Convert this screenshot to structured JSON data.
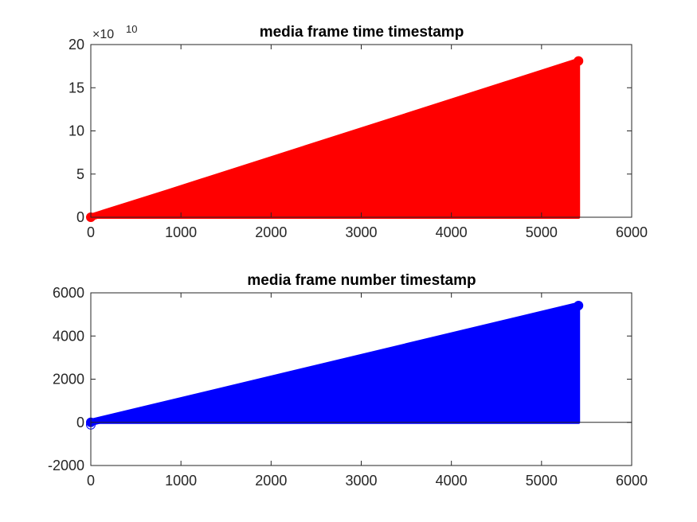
{
  "chart_data": [
    {
      "type": "scatter",
      "title": "media frame time timestamp",
      "xlabel": "",
      "ylabel": "",
      "xlim": [
        0,
        6000
      ],
      "ylim": [
        0,
        20
      ],
      "xticks": [
        "0",
        "1000",
        "2000",
        "3000",
        "4000",
        "5000",
        "6000"
      ],
      "yticks": [
        "0",
        "5",
        "10",
        "15",
        "20"
      ],
      "y_exponent": "10",
      "y_exponent_prefix": "×10",
      "color": "#ff0000",
      "baseline": 0,
      "stem": true,
      "series": [
        {
          "x": [
            0,
            850,
            5400,
            5410
          ],
          "y": [
            0,
            2.8,
            18.0,
            18.1
          ]
        }
      ]
    },
    {
      "type": "scatter",
      "title": "media frame number timestamp",
      "xlabel": "",
      "ylabel": "",
      "xlim": [
        0,
        6000
      ],
      "ylim": [
        -2000,
        6000
      ],
      "xticks": [
        "0",
        "1000",
        "2000",
        "3000",
        "4000",
        "5000",
        "6000"
      ],
      "yticks": [
        "-2000",
        "0",
        "2000",
        "4000",
        "6000"
      ],
      "color": "#0000ff",
      "baseline": 0,
      "stem": true,
      "series": [
        {
          "x": [
            0,
            5400,
            5410
          ],
          "y": [
            0,
            5400,
            5410
          ]
        }
      ]
    }
  ]
}
